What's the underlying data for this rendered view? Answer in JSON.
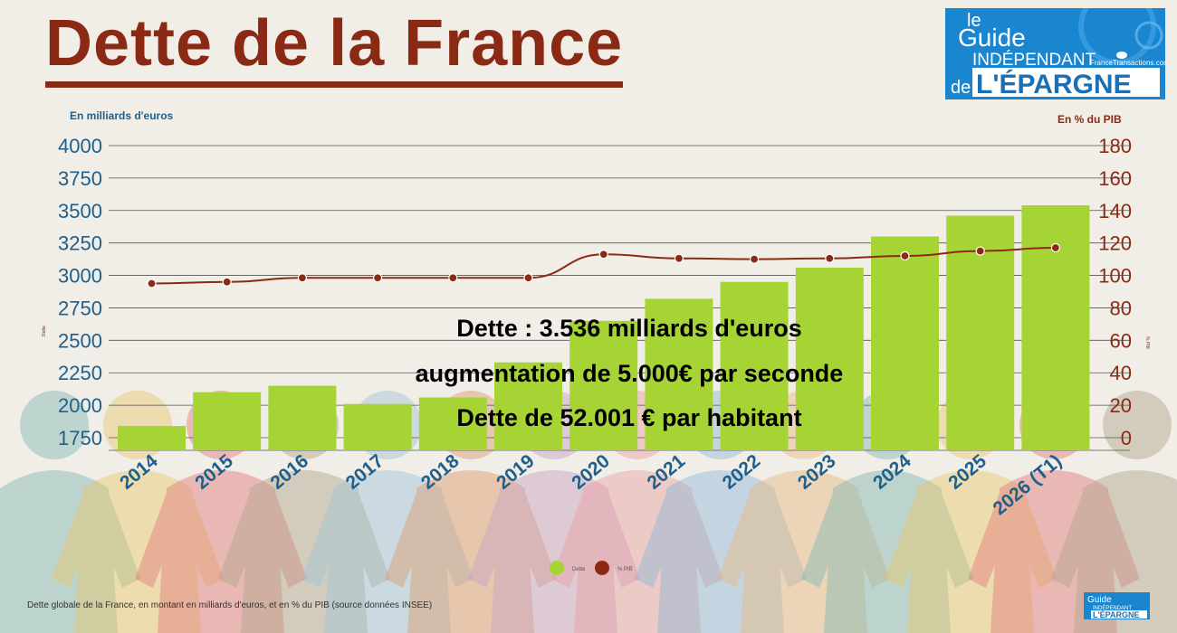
{
  "title": "Dette de la France",
  "logo": {
    "line1": "le",
    "line2": "Guide",
    "line3": "INDÉPENDANT",
    "line4": "de",
    "line5": "L'ÉPARGNE",
    "site": "FranceTransactions.com"
  },
  "colors": {
    "title": "#8b2a14",
    "bar": "#a6d435",
    "line": "#8b2a14",
    "left_axis": "#1f5f8b",
    "right_axis": "#8b2a14",
    "logo_bg": "#1a86d0"
  },
  "overlay": {
    "line1": "Dette : 3.536 milliards d'euros",
    "line2": "augmentation de 5.000€ par seconde",
    "line3": "Dette de 52.001 € par habitant"
  },
  "footnote": "Dette globale de la France, en montant en milliards d'euros, et en % du PIB (source données INSEE)",
  "chart_data": {
    "type": "bar",
    "categories": [
      "2014",
      "2015",
      "2016",
      "2017",
      "2018",
      "2019",
      "2020",
      "2021",
      "2022",
      "2023",
      "2024",
      "2025",
      "2026 (T1)"
    ],
    "series": [
      {
        "name": "Dette",
        "type": "bar",
        "axis": "left",
        "values": [
          1840,
          2100,
          2150,
          2010,
          2060,
          2330,
          2650,
          2820,
          2950,
          3060,
          3300,
          3460,
          3540
        ]
      },
      {
        "name": "% PIB",
        "type": "line",
        "axis": "right",
        "values": [
          95,
          96,
          98.5,
          98.5,
          98.5,
          98.5,
          113,
          110.5,
          110,
          110.5,
          112,
          115,
          117
        ]
      }
    ],
    "left_axis": {
      "label": "En milliards d'euros",
      "side_label": "Dette",
      "ticks": [
        1750,
        2000,
        2250,
        2500,
        2750,
        3000,
        3250,
        3500,
        3750,
        4000
      ],
      "range": [
        1750,
        4000
      ]
    },
    "right_axis": {
      "label": "En % du PIB",
      "side_label": "% PIB",
      "ticks": [
        0,
        20,
        40,
        60,
        80,
        100,
        120,
        140,
        160,
        180
      ],
      "range": [
        0,
        180
      ]
    },
    "legend": {
      "position": "bottom-center",
      "entries": [
        "Dette",
        "% PIB"
      ]
    },
    "grid": true
  }
}
